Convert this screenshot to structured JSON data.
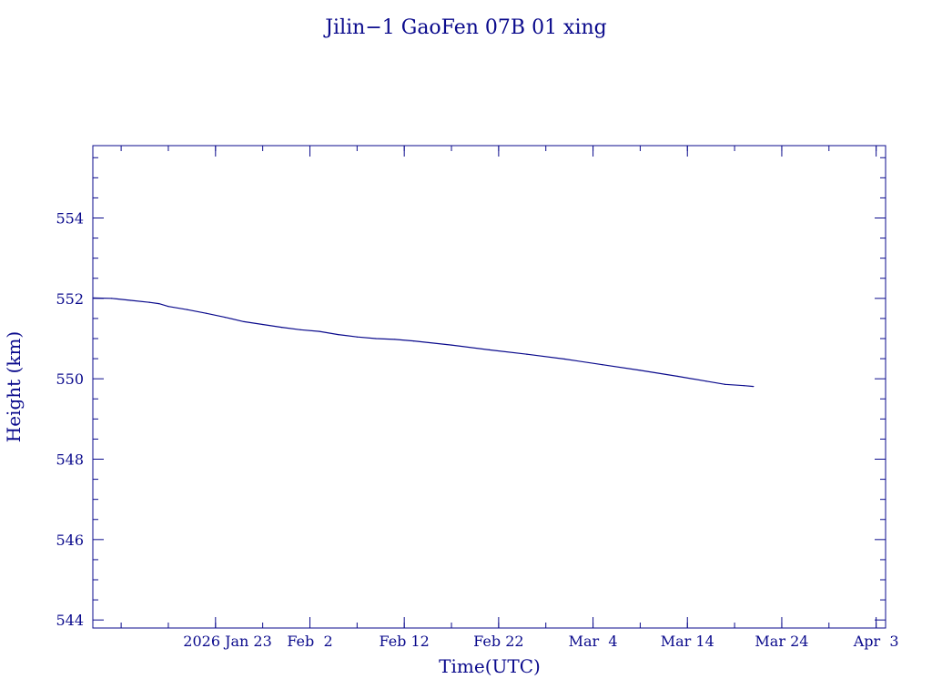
{
  "chart_data": {
    "type": "line",
    "title": "Jilin−1 GaoFen 07B 01 xing",
    "xlabel": "Time(UTC)",
    "ylabel": "Height (km)",
    "x_range": [
      "2026-01-10",
      "2026-04-04"
    ],
    "ylim": [
      543.8,
      555.8
    ],
    "y_ticks": [
      544,
      546,
      548,
      550,
      552,
      554
    ],
    "y_tick_labels": [
      "544",
      "546",
      "548",
      "550",
      "552",
      "554"
    ],
    "x_ticks": [
      "2026-01-23",
      "2026-02-02",
      "2026-02-12",
      "2026-02-22",
      "2026-03-04",
      "2026-03-14",
      "2026-03-24",
      "2026-04-03"
    ],
    "x_tick_labels": [
      "2026 Jan 23",
      "Feb  2",
      "Feb 12",
      "Feb 22",
      "Mar  4",
      "Mar 14",
      "Mar 24",
      "Apr  3"
    ],
    "grid": false,
    "color": "#0a0a8c",
    "series": [
      {
        "x": [
          "2026-01-10",
          "2026-01-12",
          "2026-01-14",
          "2026-01-16",
          "2026-01-17",
          "2026-01-18",
          "2026-01-20",
          "2026-01-22",
          "2026-01-24",
          "2026-01-26",
          "2026-01-28",
          "2026-01-30",
          "2026-02-01",
          "2026-02-03",
          "2026-02-05",
          "2026-02-07",
          "2026-02-09",
          "2026-02-11",
          "2026-02-13",
          "2026-02-17",
          "2026-02-21",
          "2026-02-25",
          "2026-03-01",
          "2026-03-05",
          "2026-03-09",
          "2026-03-13",
          "2026-03-16",
          "2026-03-18",
          "2026-03-20",
          "2026-03-21"
        ],
        "y": [
          552.01,
          552.0,
          551.95,
          551.9,
          551.87,
          551.8,
          551.72,
          551.63,
          551.53,
          551.42,
          551.35,
          551.28,
          551.22,
          551.18,
          551.1,
          551.04,
          551.0,
          550.98,
          550.94,
          550.84,
          550.72,
          550.61,
          550.49,
          550.35,
          550.21,
          550.06,
          549.94,
          549.86,
          549.83,
          549.81
        ]
      }
    ]
  }
}
